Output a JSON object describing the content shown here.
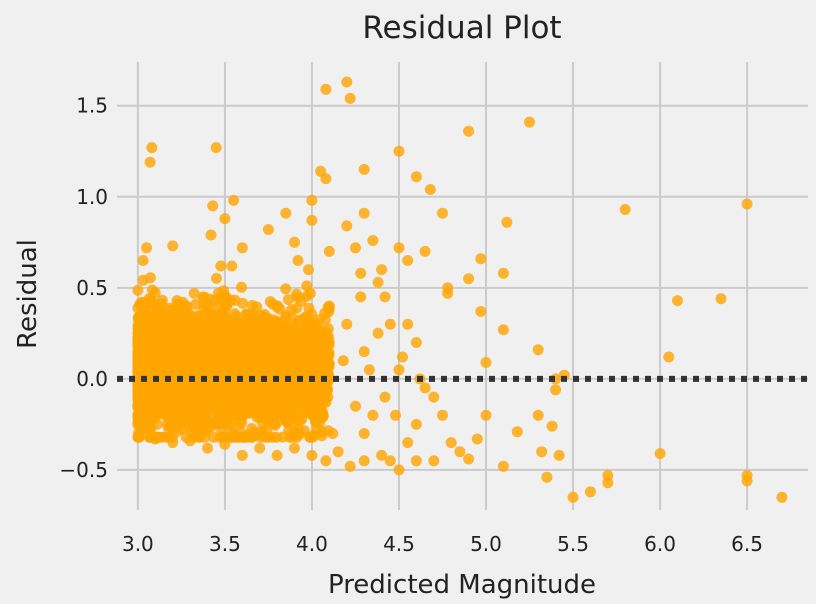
{
  "chart_data": {
    "type": "scatter",
    "title": "Residual Plot",
    "xlabel": "Predicted Magnitude",
    "ylabel": "Residual",
    "xlim": [
      2.88,
      6.85
    ],
    "ylim": [
      -0.72,
      1.74
    ],
    "x_ticks": [
      3.0,
      3.5,
      4.0,
      4.5,
      5.0,
      5.5,
      6.0,
      6.5
    ],
    "x_tick_labels": [
      "3.0",
      "3.5",
      "4.0",
      "4.5",
      "5.0",
      "5.5",
      "6.0",
      "6.5"
    ],
    "y_ticks": [
      -0.5,
      0.0,
      0.5,
      1.0,
      1.5
    ],
    "y_tick_labels": [
      "−0.5",
      "0.0",
      "0.5",
      "1.0",
      "1.5"
    ],
    "grid": true,
    "reference_line": {
      "y": 0.0,
      "style": "dotted",
      "color": "#333333"
    },
    "series": [
      {
        "color": "#ffa500",
        "points": [
          [
            3.08,
            1.27
          ],
          [
            3.07,
            1.19
          ],
          [
            3.45,
            1.27
          ],
          [
            3.43,
            0.95
          ],
          [
            3.55,
            0.98
          ],
          [
            3.42,
            0.79
          ],
          [
            3.5,
            0.88
          ],
          [
            3.05,
            0.72
          ],
          [
            3.03,
            0.65
          ],
          [
            3.2,
            0.73
          ],
          [
            3.6,
            0.72
          ],
          [
            3.75,
            0.82
          ],
          [
            3.85,
            0.91
          ],
          [
            3.9,
            0.75
          ],
          [
            3.92,
            0.65
          ],
          [
            3.98,
            0.6
          ],
          [
            4.0,
            0.98
          ],
          [
            4.05,
            1.14
          ],
          [
            4.08,
            1.1
          ],
          [
            4.0,
            0.87
          ],
          [
            4.1,
            0.7
          ],
          [
            4.08,
            1.59
          ],
          [
            4.2,
            1.63
          ],
          [
            4.22,
            1.54
          ],
          [
            4.2,
            0.84
          ],
          [
            4.3,
            1.15
          ],
          [
            4.3,
            0.91
          ],
          [
            4.25,
            0.72
          ],
          [
            4.35,
            0.76
          ],
          [
            4.28,
            0.58
          ],
          [
            4.4,
            0.6
          ],
          [
            4.38,
            0.53
          ],
          [
            4.5,
            1.25
          ],
          [
            4.6,
            1.11
          ],
          [
            4.5,
            0.72
          ],
          [
            4.55,
            0.65
          ],
          [
            4.68,
            1.04
          ],
          [
            4.65,
            0.7
          ],
          [
            4.75,
            0.91
          ],
          [
            4.78,
            0.5
          ],
          [
            4.78,
            0.47
          ],
          [
            4.9,
            1.36
          ],
          [
            4.9,
            0.55
          ],
          [
            4.97,
            0.66
          ],
          [
            4.97,
            0.37
          ],
          [
            5.0,
            0.09
          ],
          [
            5.1,
            0.58
          ],
          [
            5.12,
            0.86
          ],
          [
            5.1,
            0.27
          ],
          [
            5.25,
            1.41
          ],
          [
            5.3,
            0.16
          ],
          [
            5.4,
            0.0
          ],
          [
            5.45,
            0.02
          ],
          [
            5.8,
            0.93
          ],
          [
            6.1,
            0.43
          ],
          [
            6.35,
            0.44
          ],
          [
            6.5,
            0.96
          ],
          [
            6.05,
            0.12
          ],
          [
            4.1,
            0.4
          ],
          [
            4.2,
            0.3
          ],
          [
            4.3,
            0.15
          ],
          [
            4.45,
            0.3
          ],
          [
            4.55,
            0.3
          ],
          [
            4.5,
            0.05
          ],
          [
            4.62,
            0.0
          ],
          [
            4.7,
            -0.1
          ],
          [
            4.65,
            -0.05
          ],
          [
            4.75,
            -0.2
          ],
          [
            4.8,
            -0.35
          ],
          [
            4.85,
            -0.4
          ],
          [
            4.9,
            -0.44
          ],
          [
            4.95,
            -0.33
          ],
          [
            5.0,
            -0.2
          ],
          [
            5.1,
            -0.48
          ],
          [
            5.18,
            -0.29
          ],
          [
            5.3,
            -0.2
          ],
          [
            5.32,
            -0.4
          ],
          [
            5.35,
            -0.54
          ],
          [
            5.38,
            -0.26
          ],
          [
            5.42,
            -0.42
          ],
          [
            5.4,
            -0.06
          ],
          [
            5.5,
            -0.65
          ],
          [
            5.6,
            -0.62
          ],
          [
            5.7,
            -0.53
          ],
          [
            5.7,
            -0.57
          ],
          [
            6.0,
            -0.41
          ],
          [
            6.5,
            -0.53
          ],
          [
            6.5,
            -0.56
          ],
          [
            6.7,
            -0.65
          ],
          [
            4.5,
            -0.5
          ],
          [
            4.45,
            -0.45
          ],
          [
            4.4,
            -0.42
          ],
          [
            4.3,
            -0.45
          ],
          [
            4.22,
            -0.48
          ],
          [
            4.15,
            -0.4
          ],
          [
            4.08,
            -0.45
          ],
          [
            4.0,
            -0.42
          ],
          [
            3.9,
            -0.38
          ],
          [
            3.8,
            -0.42
          ],
          [
            3.7,
            -0.38
          ],
          [
            3.6,
            -0.42
          ],
          [
            3.5,
            -0.36
          ],
          [
            3.4,
            -0.38
          ],
          [
            3.3,
            -0.34
          ],
          [
            3.2,
            -0.35
          ],
          [
            3.1,
            -0.33
          ],
          [
            3.02,
            -0.28
          ],
          [
            3.55,
            -0.3
          ],
          [
            4.55,
            -0.35
          ],
          [
            4.6,
            -0.25
          ],
          [
            4.35,
            -0.2
          ],
          [
            4.25,
            -0.15
          ],
          [
            4.42,
            -0.1
          ],
          [
            4.33,
            0.05
          ],
          [
            4.18,
            0.1
          ],
          [
            4.12,
            -0.3
          ],
          [
            4.42,
            0.45
          ],
          [
            4.6,
            0.2
          ],
          [
            4.7,
            -0.45
          ],
          [
            4.6,
            -0.45
          ],
          [
            4.3,
            -0.3
          ],
          [
            4.48,
            -0.2
          ],
          [
            4.52,
            0.12
          ],
          [
            4.38,
            0.25
          ],
          [
            4.28,
            0.45
          ],
          [
            4.1,
            0.2
          ]
        ]
      }
    ],
    "dense_cluster": {
      "x_range": [
        3.0,
        4.1
      ],
      "y_range": [
        -0.32,
        0.62
      ],
      "approx_points": 3500
    }
  }
}
